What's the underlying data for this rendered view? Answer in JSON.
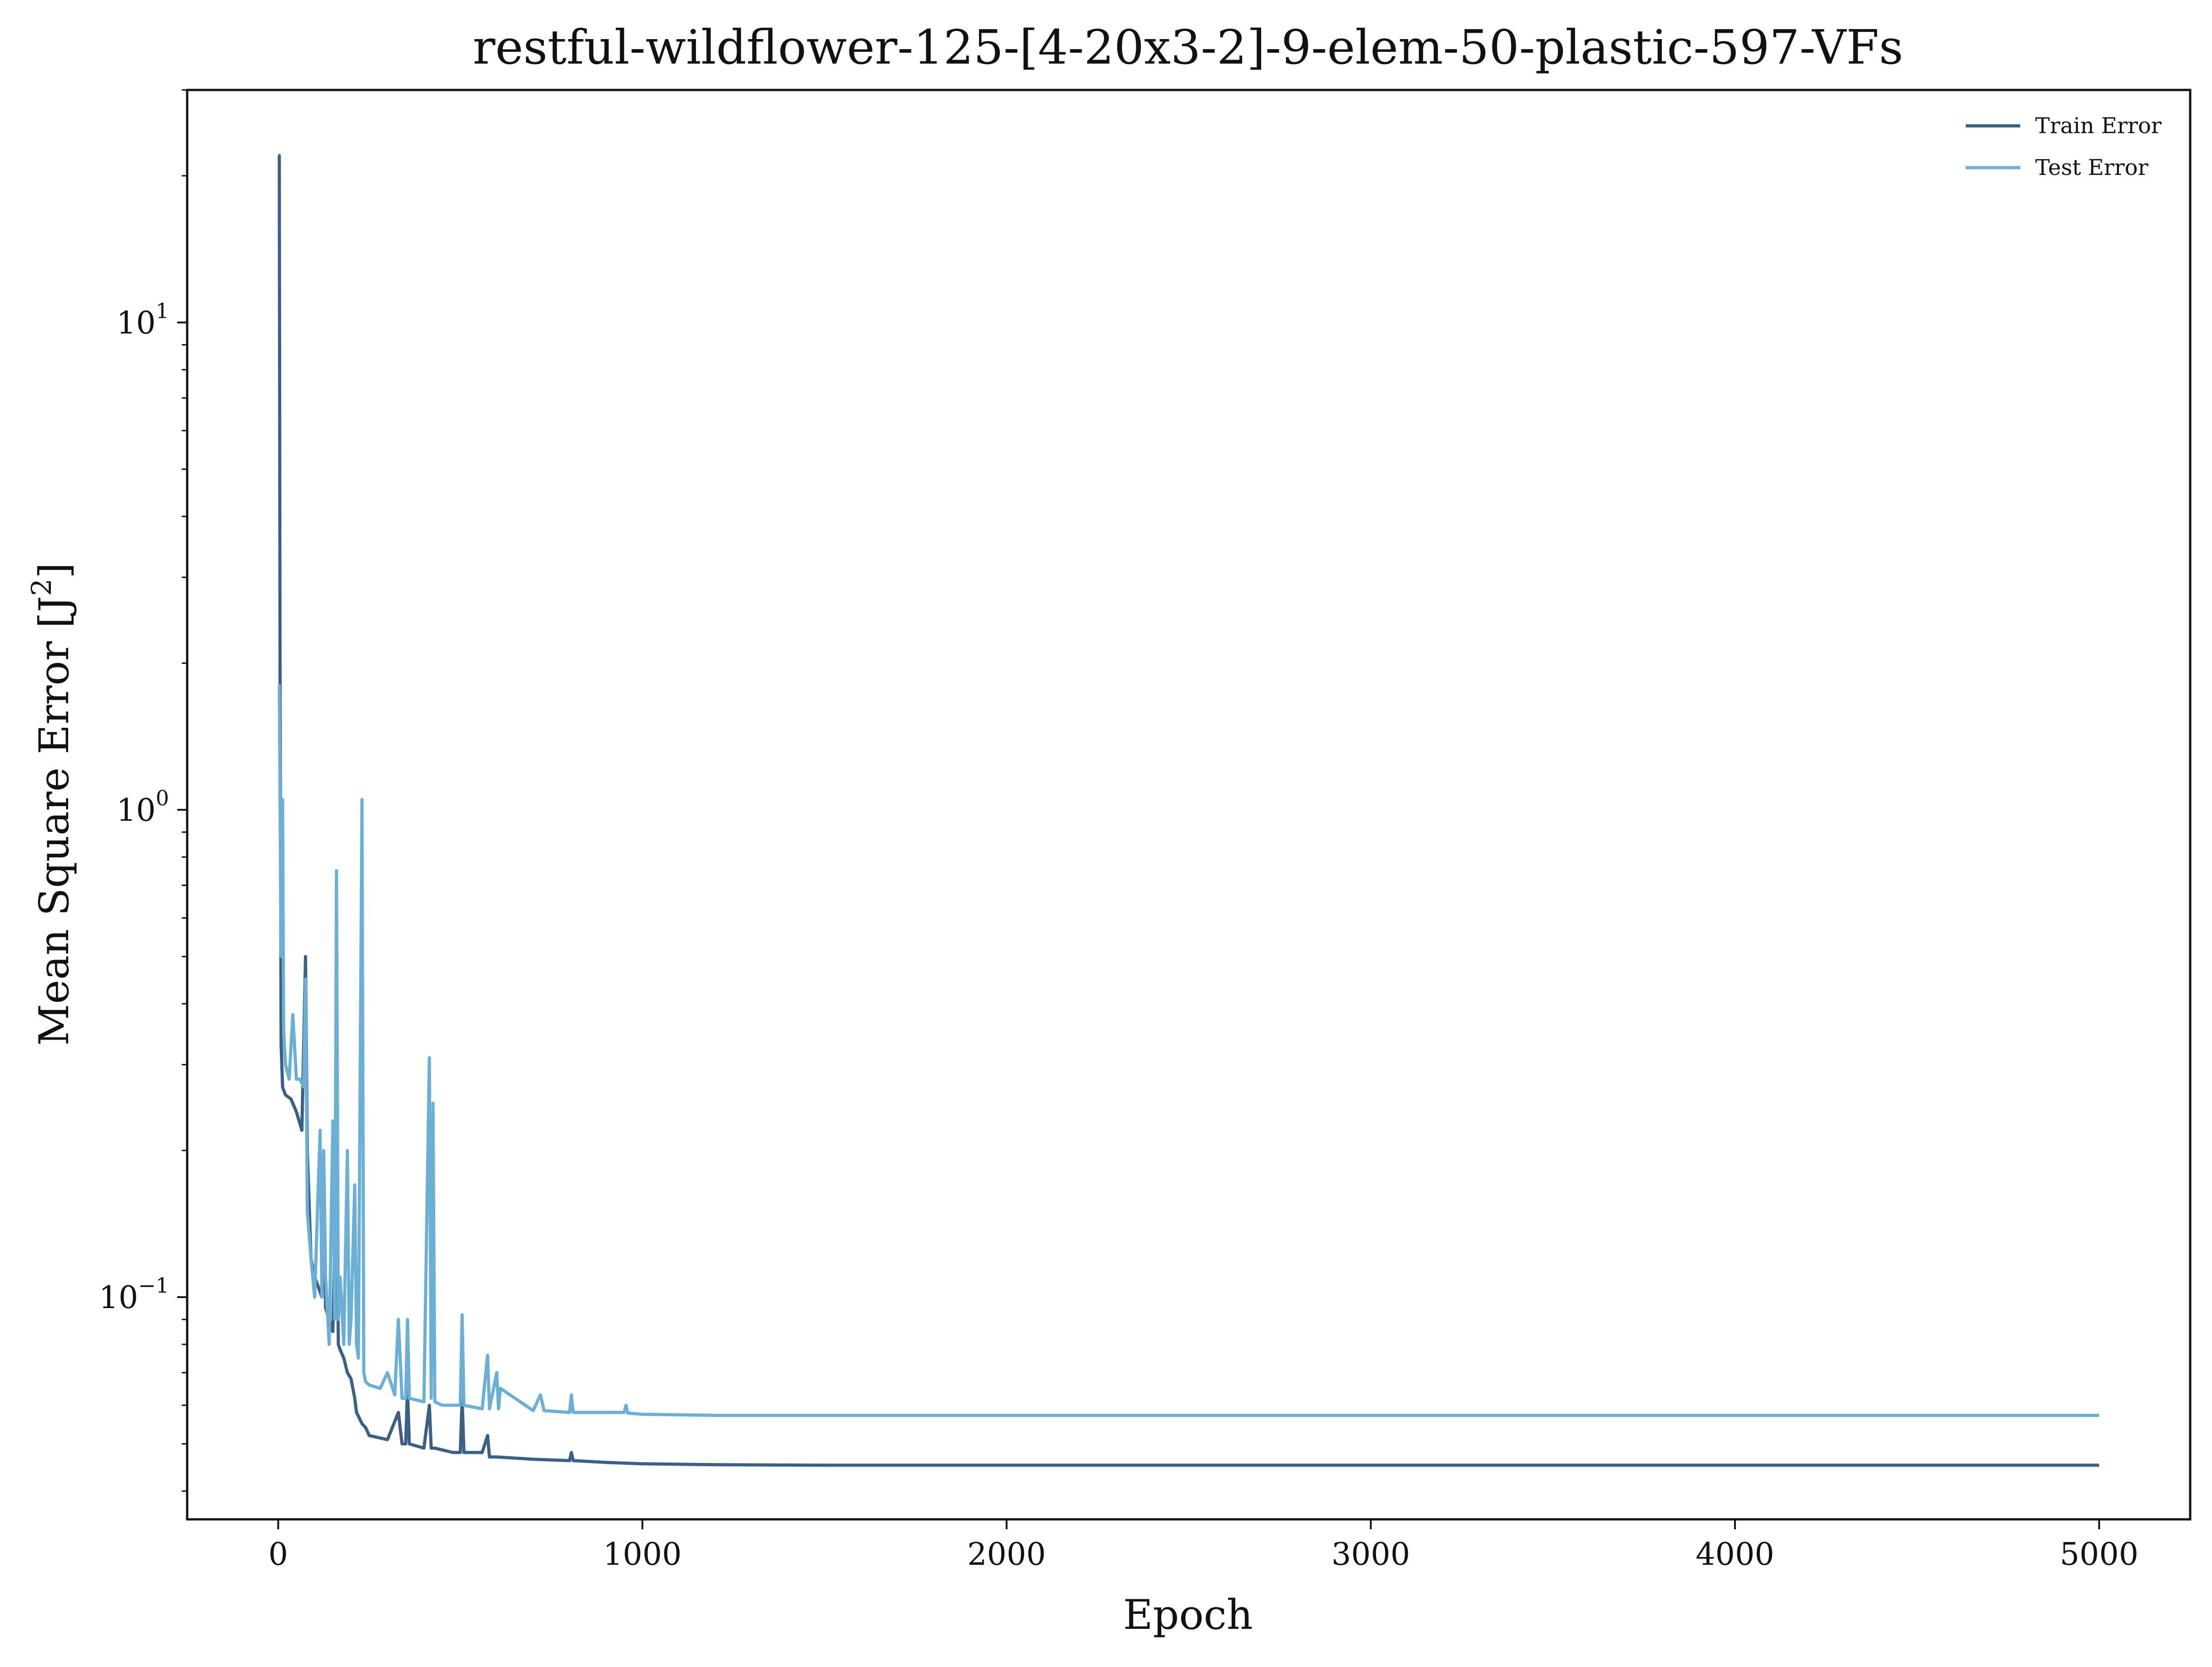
{
  "chart_data": {
    "type": "line",
    "title": "restful-wildflower-125-[4-20x3-2]-9-elem-50-plastic-597-VFs",
    "xlabel": "Epoch",
    "ylabel": "Mean Square Error [J",
    "ylabel_sup": "2",
    "ylabel_suffix": "]",
    "xlim": [
      -250,
      5250
    ],
    "ylim": [
      0.035,
      30
    ],
    "yscale": "log",
    "grid": false,
    "legend_position": "top-right",
    "x_ticks": [
      {
        "value": 0,
        "label": "0"
      },
      {
        "value": 1000,
        "label": "1000"
      },
      {
        "value": 2000,
        "label": "2000"
      },
      {
        "value": 3000,
        "label": "3000"
      },
      {
        "value": 4000,
        "label": "4000"
      },
      {
        "value": 5000,
        "label": "5000"
      }
    ],
    "y_ticks": [
      {
        "value": 0.1,
        "base": "10",
        "exp": "−1"
      },
      {
        "value": 1,
        "base": "10",
        "exp": "0"
      },
      {
        "value": 10,
        "base": "10",
        "exp": "1"
      }
    ],
    "series": [
      {
        "name": "Train Error",
        "color": "#3b6083",
        "x": [
          0,
          3,
          5,
          8,
          12,
          20,
          35,
          50,
          65,
          75,
          80,
          90,
          100,
          110,
          120,
          125,
          130,
          140,
          150,
          160,
          165,
          170,
          180,
          190,
          200,
          210,
          215,
          220,
          230,
          240,
          250,
          300,
          330,
          340,
          350,
          355,
          360,
          400,
          415,
          420,
          430,
          480,
          500,
          505,
          510,
          560,
          575,
          580,
          600,
          700,
          800,
          805,
          810,
          900,
          1000,
          1200,
          1500,
          2000,
          3000,
          4000,
          5000
        ],
        "values": [
          22,
          22,
          2.0,
          0.33,
          0.27,
          0.26,
          0.255,
          0.24,
          0.22,
          0.5,
          0.2,
          0.12,
          0.11,
          0.105,
          0.1,
          0.19,
          0.095,
          0.09,
          0.085,
          0.2,
          0.08,
          0.078,
          0.075,
          0.07,
          0.068,
          0.062,
          0.058,
          0.057,
          0.055,
          0.054,
          0.052,
          0.051,
          0.058,
          0.05,
          0.05,
          0.065,
          0.05,
          0.049,
          0.06,
          0.049,
          0.049,
          0.048,
          0.048,
          0.062,
          0.048,
          0.048,
          0.052,
          0.047,
          0.047,
          0.0465,
          0.0462,
          0.048,
          0.0462,
          0.0458,
          0.0455,
          0.0453,
          0.0452,
          0.0452,
          0.0452,
          0.0452,
          0.0452
        ]
      },
      {
        "name": "Test Error",
        "color": "#6baed6",
        "x": [
          0,
          3,
          8,
          12,
          15,
          20,
          30,
          40,
          50,
          60,
          70,
          75,
          80,
          90,
          100,
          115,
          120,
          125,
          130,
          140,
          150,
          155,
          160,
          165,
          170,
          180,
          190,
          195,
          200,
          210,
          215,
          220,
          230,
          235,
          240,
          250,
          280,
          300,
          320,
          330,
          340,
          350,
          355,
          360,
          400,
          415,
          420,
          425,
          430,
          450,
          480,
          500,
          505,
          510,
          560,
          575,
          580,
          600,
          605,
          610,
          700,
          720,
          730,
          800,
          805,
          810,
          900,
          950,
          955,
          960,
          1000,
          1200,
          1500,
          2000,
          3000,
          4000,
          5000
        ],
        "values": [
          1.8,
          1.8,
          0.5,
          1.05,
          0.35,
          0.3,
          0.28,
          0.38,
          0.28,
          0.28,
          0.27,
          0.45,
          0.15,
          0.12,
          0.1,
          0.22,
          0.1,
          0.2,
          0.11,
          0.08,
          0.23,
          0.09,
          0.75,
          0.09,
          0.11,
          0.08,
          0.2,
          0.08,
          0.09,
          0.17,
          0.08,
          0.075,
          1.05,
          0.07,
          0.067,
          0.066,
          0.065,
          0.07,
          0.063,
          0.09,
          0.062,
          0.062,
          0.09,
          0.062,
          0.061,
          0.31,
          0.062,
          0.25,
          0.061,
          0.06,
          0.06,
          0.06,
          0.092,
          0.06,
          0.059,
          0.076,
          0.059,
          0.07,
          0.059,
          0.065,
          0.0585,
          0.063,
          0.0585,
          0.058,
          0.063,
          0.058,
          0.058,
          0.058,
          0.06,
          0.0578,
          0.0575,
          0.0572,
          0.0572,
          0.0572,
          0.0572,
          0.0572,
          0.0572
        ]
      }
    ]
  }
}
